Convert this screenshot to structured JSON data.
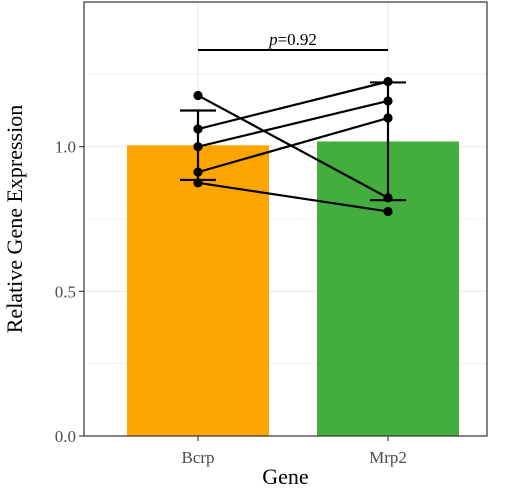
{
  "chart_data": {
    "type": "bar",
    "title": "",
    "xlabel": "Gene",
    "ylabel": "Relative Gene Expression",
    "categories": [
      "Bcrp",
      "Mrp2"
    ],
    "values": [
      1.005,
      1.018
    ],
    "error_bars": [
      {
        "low": 0.885,
        "high": 1.125
      },
      {
        "low": 0.815,
        "high": 1.222
      }
    ],
    "bar_colors": [
      "#FFA500",
      "#44AD3F"
    ],
    "paired_points": [
      [
        1.177,
        0.823
      ],
      [
        1.061,
        1.225
      ],
      [
        1.0,
        1.158
      ],
      [
        0.912,
        1.099
      ],
      [
        0.875,
        0.776
      ]
    ],
    "ylim": [
      0,
      1.5
    ],
    "yticks": [
      "0.0",
      "0.5",
      "1.0"
    ],
    "grid": true,
    "annotation": {
      "prefix": "p",
      "text": "=0.92"
    }
  }
}
